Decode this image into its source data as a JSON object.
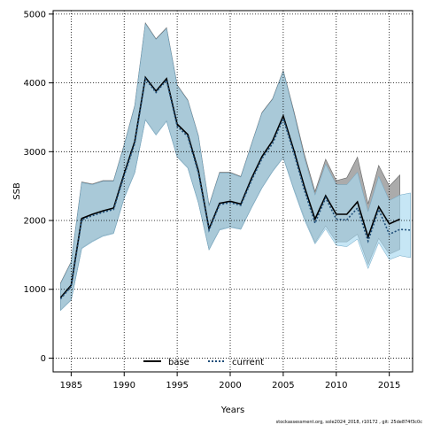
{
  "colors": {
    "base_band": "#8f8f8f",
    "current_band": "#a7d8f0",
    "overlap_band": "#8fb9cf",
    "base_line": "#000000",
    "current_line": "#1f4e79",
    "grid": "#000000"
  },
  "footer": "stockassessment.org, sole2024_2018, r10172 , git: 25de874f3c0c",
  "chart_data": {
    "type": "line",
    "title": "",
    "xlabel": "Years",
    "ylabel": "SSB",
    "xlim": [
      1983.3,
      2017.2
    ],
    "ylim": [
      -200,
      5050
    ],
    "x_ticks": [
      1985,
      1990,
      1995,
      2000,
      2005,
      2010,
      2015
    ],
    "y_ticks": [
      0,
      1000,
      2000,
      3000,
      4000,
      5000
    ],
    "grid": true,
    "legend_position": "bottom-center",
    "series": [
      {
        "name": "base",
        "style": "solid",
        "years": [
          1984,
          1985,
          1986,
          1987,
          1988,
          1989,
          1990,
          1991,
          1992,
          1993,
          1994,
          1995,
          1996,
          1997,
          1998,
          1999,
          2000,
          2001,
          2002,
          2003,
          2004,
          2005,
          2006,
          2007,
          2008,
          2009,
          2010,
          2011,
          2012,
          2013,
          2014,
          2015,
          2016
        ],
        "values": [
          880,
          1060,
          2030,
          2090,
          2140,
          2180,
          2680,
          3150,
          4080,
          3880,
          4060,
          3400,
          3250,
          2720,
          1880,
          2250,
          2280,
          2240,
          2610,
          2930,
          3160,
          3520,
          3020,
          2490,
          2020,
          2360,
          2090,
          2090,
          2270,
          1760,
          2200,
          1950,
          2020
        ],
        "lower": [
          700,
          850,
          1600,
          1700,
          1780,
          1820,
          2330,
          2700,
          3470,
          3250,
          3450,
          2930,
          2770,
          2260,
          1580,
          1870,
          1910,
          1880,
          2190,
          2480,
          2720,
          2920,
          2460,
          2040,
          1680,
          1920,
          1690,
          1690,
          1800,
          1360,
          1740,
          1510,
          1580
        ],
        "upper": [
          1090,
          1400,
          2560,
          2530,
          2580,
          2580,
          3100,
          3670,
          4870,
          4640,
          4800,
          3970,
          3750,
          3230,
          2220,
          2700,
          2700,
          2640,
          3110,
          3570,
          3770,
          4180,
          3590,
          2960,
          2420,
          2890,
          2580,
          2620,
          2920,
          2240,
          2800,
          2500,
          2660
        ]
      },
      {
        "name": "current",
        "style": "dotted",
        "years": [
          1984,
          1985,
          1986,
          1987,
          1988,
          1989,
          1990,
          1991,
          1992,
          1993,
          1994,
          1995,
          1996,
          1997,
          1998,
          1999,
          2000,
          2001,
          2002,
          2003,
          2004,
          2005,
          2006,
          2007,
          2008,
          2009,
          2010,
          2011,
          2012,
          2013,
          2014,
          2015,
          2016,
          2017
        ],
        "values": [
          860,
          1040,
          2010,
          2070,
          2120,
          2160,
          2650,
          3120,
          4060,
          3860,
          4040,
          3370,
          3220,
          2690,
          1860,
          2230,
          2260,
          2220,
          2580,
          2900,
          3120,
          3480,
          2980,
          2440,
          1960,
          2330,
          2020,
          2010,
          2180,
          1700,
          2160,
          1800,
          1870,
          1860
        ],
        "lower": [
          690,
          840,
          1590,
          1690,
          1770,
          1810,
          2320,
          2690,
          3460,
          3240,
          3440,
          2920,
          2760,
          2250,
          1570,
          1860,
          1900,
          1870,
          2180,
          2470,
          2710,
          2910,
          2440,
          2010,
          1660,
          1880,
          1640,
          1620,
          1730,
          1300,
          1680,
          1430,
          1490,
          1460
        ],
        "upper": [
          1080,
          1390,
          2550,
          2520,
          2570,
          2570,
          3090,
          3660,
          4860,
          4630,
          4790,
          3960,
          3740,
          3220,
          2210,
          2690,
          2690,
          2630,
          3100,
          3560,
          3760,
          4170,
          3560,
          2910,
          2370,
          2820,
          2520,
          2520,
          2700,
          2130,
          2640,
          2290,
          2370,
          2400
        ]
      }
    ]
  }
}
